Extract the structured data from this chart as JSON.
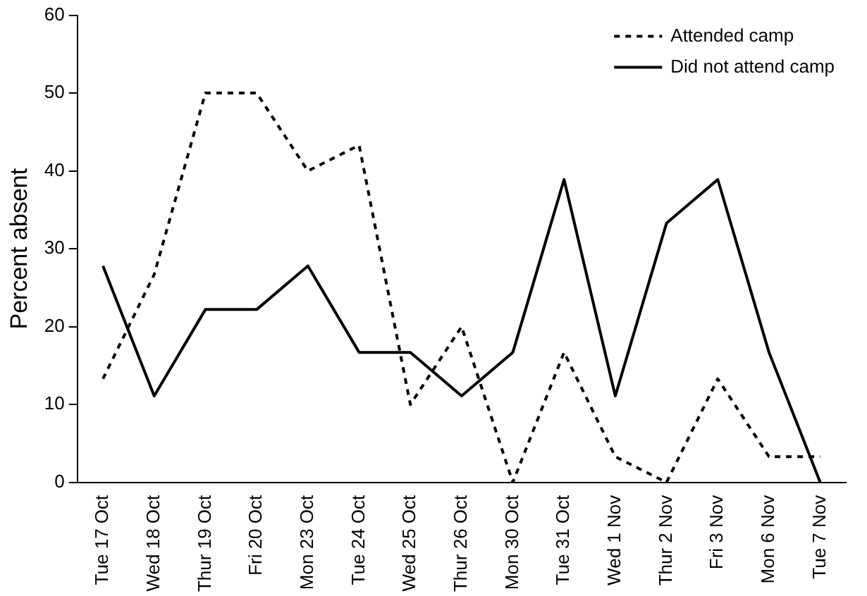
{
  "chart_data": {
    "type": "line",
    "ylabel": "Percent absent",
    "categories": [
      "Tue 17 Oct",
      "Wed 18 Oct",
      "Thur 19 Oct",
      "Fri 20 Oct",
      "Mon 23 Oct",
      "Tue 24 Oct",
      "Wed 25 Oct",
      "Thur 26 Oct",
      "Mon 30 Oct",
      "Tue 31 Oct",
      "Wed 1 Nov",
      "Thur 2 Nov",
      "Fri 3 Nov",
      "Mon 6 Nov",
      "Tue 7 Nov"
    ],
    "series": [
      {
        "name": "Attended camp",
        "color": "#000000",
        "line_style": "dashed",
        "values": [
          13.3,
          26.7,
          50,
          50,
          40,
          43.3,
          10,
          20,
          0,
          16.7,
          3.3,
          0,
          13.3,
          3.3,
          3.3
        ]
      },
      {
        "name": "Did not attend camp",
        "color": "#000000",
        "line_style": "solid",
        "values": [
          27.8,
          11.1,
          22.2,
          22.2,
          27.8,
          16.7,
          16.7,
          11.1,
          16.7,
          38.9,
          11.1,
          33.3,
          38.9,
          16.7,
          0
        ]
      }
    ],
    "ylim": [
      0,
      60
    ],
    "yticks": [
      0,
      10,
      20,
      30,
      40,
      50,
      60
    ],
    "grid": false,
    "legend": "top right",
    "marker": "none"
  }
}
